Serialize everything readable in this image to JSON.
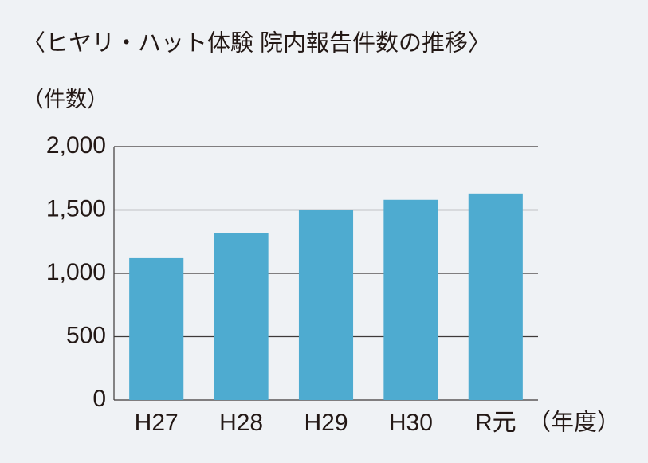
{
  "chart_data": {
    "type": "bar",
    "title": "〈ヒヤリ・ハット体験 院内報告件数の推移〉",
    "y_label": "（件数）",
    "x_label": "（年度）",
    "categories": [
      "H27",
      "H28",
      "H29",
      "H30",
      "R元"
    ],
    "values": [
      1120,
      1320,
      1500,
      1580,
      1630
    ],
    "color": "#4eabd0",
    "ylim": [
      0,
      2000
    ],
    "yticks": [
      0,
      500,
      {
        "value": 1000,
        "label": "1,000"
      },
      {
        "value": 1500,
        "label": "1,500"
      },
      {
        "value": 2000,
        "label": "2,000"
      }
    ],
    "grid": true
  }
}
